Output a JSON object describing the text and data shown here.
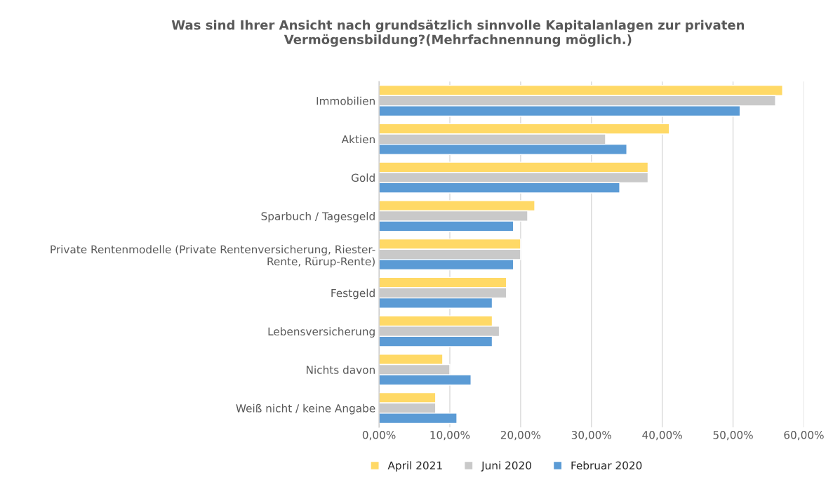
{
  "chart_data": {
    "type": "bar",
    "orientation": "horizontal",
    "title": "Was sind Ihrer Ansicht nach grundsätzlich sinnvolle Kapitalanlagen zur privaten\nVermögensbildung?(Mehrfachnennung möglich.)",
    "categories": [
      "Immobilien",
      "Aktien",
      "Gold",
      "Sparbuch / Tagesgeld",
      "Private Rentenmodelle (Private Rentenversicherung, Riester-\nRente, Rürup-Rente)",
      "Festgeld",
      "Lebensversicherung",
      "Nichts davon",
      "Weiß nicht / keine Angabe"
    ],
    "series": [
      {
        "name": "April 2021",
        "color": "#ffd966",
        "values": [
          57,
          41,
          38,
          22,
          20,
          18,
          16,
          9,
          8
        ]
      },
      {
        "name": "Juni 2020",
        "color": "#c9c9c9",
        "values": [
          56,
          32,
          38,
          21,
          20,
          18,
          17,
          10,
          8
        ]
      },
      {
        "name": "Februar 2020",
        "color": "#5b9bd5",
        "values": [
          51,
          35,
          34,
          19,
          19,
          16,
          16,
          13,
          11
        ]
      }
    ],
    "xlim": [
      0,
      60
    ],
    "xticks": [
      {
        "value": 0,
        "label": "0,00%"
      },
      {
        "value": 10,
        "label": "10,00%"
      },
      {
        "value": 20,
        "label": "20,00%"
      },
      {
        "value": 30,
        "label": "30,00%"
      },
      {
        "value": 40,
        "label": "40,00%"
      },
      {
        "value": 50,
        "label": "50,00%"
      },
      {
        "value": 60,
        "label": "60,00%"
      }
    ],
    "grid": "x",
    "legend": "bottom"
  }
}
